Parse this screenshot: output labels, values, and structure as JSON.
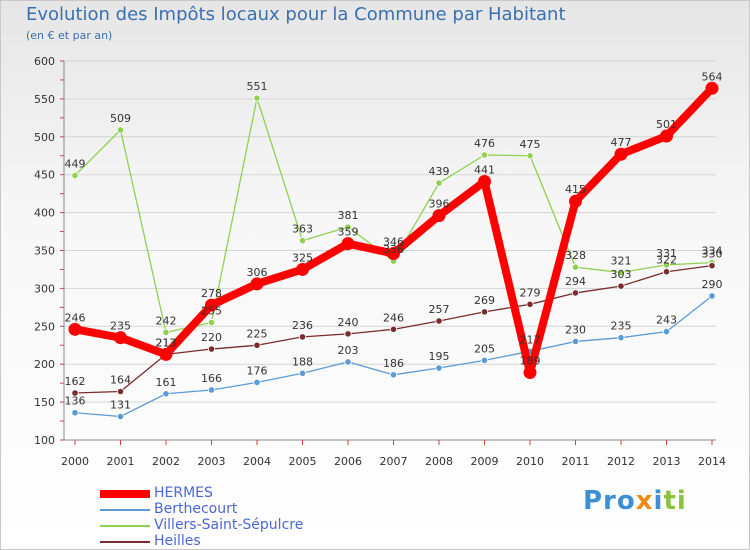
{
  "chart_data": {
    "type": "line",
    "title": "Evolution des Impôts locaux pour la Commune par Habitant",
    "subtitle": "(en € et par an)",
    "x": [
      "2000",
      "2001",
      "2002",
      "2003",
      "2004",
      "2005",
      "2006",
      "2007",
      "2008",
      "2009",
      "2010",
      "2011",
      "2012",
      "2013",
      "2014"
    ],
    "ylim": [
      100,
      600
    ],
    "yticks": [
      "100",
      "150",
      "200",
      "250",
      "300",
      "350",
      "400",
      "450",
      "500",
      "550",
      "600"
    ],
    "grid": "horizontal",
    "legend_position": "bottom-left",
    "series": [
      {
        "name": "HERMES",
        "color": "#ff0000",
        "values": [
          246,
          235,
          213,
          278,
          306,
          325,
          359,
          346,
          396,
          441,
          189,
          415,
          477,
          501,
          564
        ],
        "labels": [
          "246",
          "235",
          "213",
          "278",
          "306",
          "325",
          "359",
          "346",
          "396",
          "441",
          "189",
          "415",
          "477",
          "501",
          "564"
        ]
      },
      {
        "name": "Berthecourt",
        "color": "#5b9bd5",
        "values": [
          136,
          131,
          161,
          166,
          176,
          188,
          203,
          186,
          195,
          205,
          217,
          230,
          235,
          243,
          290
        ],
        "labels": [
          "136",
          "131",
          "161",
          "166",
          "176",
          "188",
          "203",
          "186",
          "195",
          "205",
          "217",
          "230",
          "235",
          "243",
          "290"
        ]
      },
      {
        "name": "Villers-Saint-Sépulcre",
        "color": "#8fd14f",
        "values": [
          449,
          509,
          242,
          255,
          551,
          363,
          381,
          336,
          439,
          476,
          475,
          328,
          321,
          331,
          334
        ],
        "labels": [
          "449",
          "509",
          "242",
          "255",
          "551",
          "363",
          "381",
          "336",
          "439",
          "476",
          "475",
          "328",
          "321",
          "331",
          "334"
        ]
      },
      {
        "name": "Heilles",
        "color": "#7a2b2b",
        "values": [
          162,
          164,
          213,
          220,
          225,
          236,
          240,
          246,
          257,
          269,
          279,
          294,
          303,
          322,
          330
        ],
        "labels": [
          "162",
          "164",
          "213",
          "220",
          "225",
          "236",
          "240",
          "246",
          "257",
          "269",
          "279",
          "294",
          "303",
          "322",
          "330"
        ]
      }
    ]
  },
  "brand": {
    "part1": "Pro",
    "part2": "x",
    "part3": "i",
    "part4": "ti"
  }
}
